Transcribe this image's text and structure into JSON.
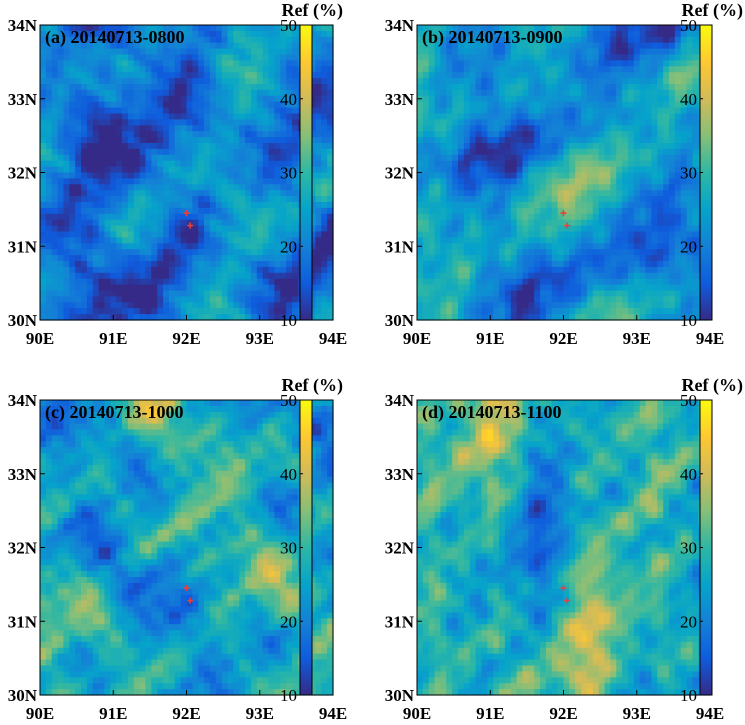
{
  "chart_data": [
    {
      "type": "heatmap",
      "title": "(a) 20140713-0800",
      "x_ticks": [
        "90E",
        "91E",
        "92E",
        "93E",
        "94E"
      ],
      "y_ticks": [
        "30N",
        "31N",
        "32N",
        "33N",
        "34N"
      ],
      "xlim": [
        90,
        94
      ],
      "ylim": [
        30,
        34
      ],
      "colorbar": {
        "label": "Ref (%)",
        "ticks": [
          "10",
          "20",
          "30",
          "40",
          "50"
        ],
        "range": [
          10,
          50
        ]
      },
      "mean_ref": 19,
      "markers": [
        {
          "lon": 92.0,
          "lat": 31.45
        },
        {
          "lon": 92.05,
          "lat": 31.28
        }
      ]
    },
    {
      "type": "heatmap",
      "title": "(b) 20140713-0900",
      "x_ticks": [
        "90E",
        "91E",
        "92E",
        "93E",
        "94E"
      ],
      "y_ticks": [
        "30N",
        "31N",
        "32N",
        "33N",
        "34N"
      ],
      "xlim": [
        90,
        94
      ],
      "ylim": [
        30,
        34
      ],
      "colorbar": {
        "label": "Ref (%)",
        "ticks": [
          "10",
          "20",
          "30",
          "40",
          "50"
        ],
        "range": [
          10,
          50
        ]
      },
      "mean_ref": 22,
      "markers": [
        {
          "lon": 92.0,
          "lat": 31.45
        },
        {
          "lon": 92.05,
          "lat": 31.28
        }
      ]
    },
    {
      "type": "heatmap",
      "title": "(c) 20140713-1000",
      "x_ticks": [
        "90E",
        "91E",
        "92E",
        "93E",
        "94E"
      ],
      "y_ticks": [
        "30N",
        "31N",
        "32N",
        "33N",
        "34N"
      ],
      "xlim": [
        90,
        94
      ],
      "ylim": [
        30,
        34
      ],
      "colorbar": {
        "label": "Ref (%)",
        "ticks": [
          "10",
          "20",
          "30",
          "40",
          "50"
        ],
        "range": [
          10,
          50
        ]
      },
      "mean_ref": 26,
      "markers": [
        {
          "lon": 92.0,
          "lat": 31.45
        },
        {
          "lon": 92.05,
          "lat": 31.28
        }
      ]
    },
    {
      "type": "heatmap",
      "title": "(d) 20140713-1100",
      "x_ticks": [
        "90E",
        "91E",
        "92E",
        "93E",
        "94E"
      ],
      "y_ticks": [
        "30N",
        "31N",
        "32N",
        "33N",
        "34N"
      ],
      "xlim": [
        90,
        94
      ],
      "ylim": [
        30,
        34
      ],
      "colorbar": {
        "label": "Ref (%)",
        "ticks": [
          "10",
          "20",
          "30",
          "40",
          "50"
        ],
        "range": [
          10,
          50
        ]
      },
      "mean_ref": 28,
      "markers": [
        {
          "lon": 92.0,
          "lat": 31.45
        },
        {
          "lon": 92.05,
          "lat": 31.28
        }
      ]
    }
  ],
  "colormap": [
    "#352a87",
    "#0f5cdd",
    "#1481d6",
    "#06a4ca",
    "#2eb7a4",
    "#87bf77",
    "#d1bb59",
    "#fec832",
    "#f9fb0e"
  ],
  "marker_color": "#e8403a"
}
